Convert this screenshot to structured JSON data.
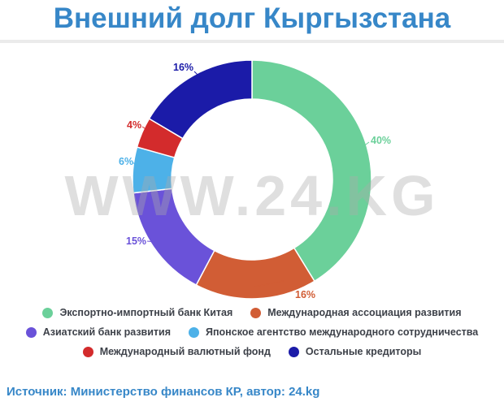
{
  "ui": {
    "title": "Внешний долг Кыргызстана",
    "watermark": "WWW.24.KG",
    "source": "Источник: Министерство финансов КР, автор: 24.kg"
  },
  "chart_data": {
    "type": "pie",
    "donut": true,
    "title": "Внешний долг Кыргызстана",
    "unit": "%",
    "start_angle_deg": 0,
    "direction": "clockwise",
    "legend_position": "bottom",
    "series": [
      {
        "name": "Экспортно-импортный банк Китая",
        "value": 40,
        "label": "40%",
        "color": "#6BD09A"
      },
      {
        "name": "Международная ассоциация развития",
        "value": 16,
        "label": "16%",
        "color": "#D15D35"
      },
      {
        "name": "Азиатский банк развития",
        "value": 15,
        "label": "15%",
        "color": "#6A52D9"
      },
      {
        "name": "Японское агентство международного сотрудничества",
        "value": 6,
        "label": "6%",
        "color": "#4DB1E8"
      },
      {
        "name": "Международный валютный фонд",
        "value": 4,
        "label": "4%",
        "color": "#D32B2C"
      },
      {
        "name": "Остальные кредиторы",
        "value": 16,
        "label": "16%",
        "color": "#1B1BA8"
      }
    ]
  }
}
